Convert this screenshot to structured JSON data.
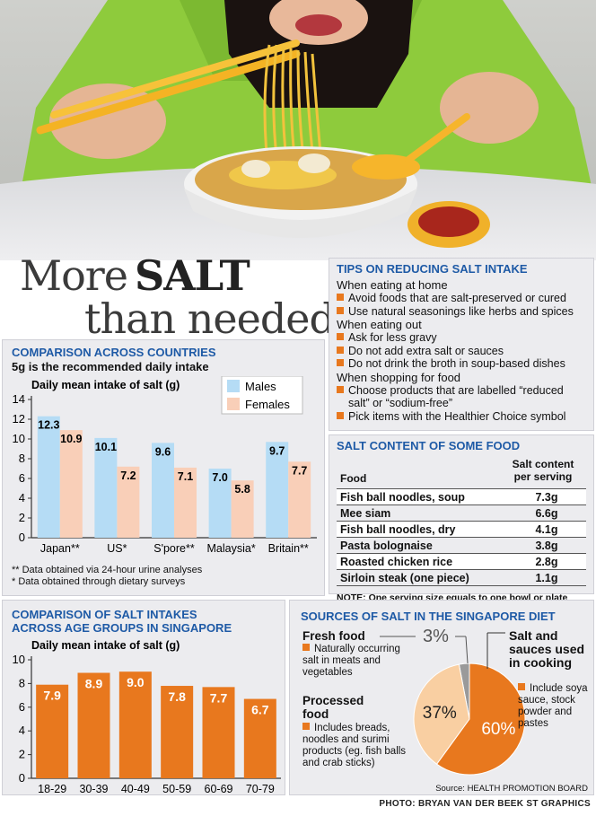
{
  "title": {
    "line1_a": "More",
    "line1_b": "SALT",
    "line2": "than needed"
  },
  "tips": {
    "title": "TIPS ON REDUCING SALT INTAKE",
    "groups": [
      {
        "heading": "When eating at home",
        "items": [
          "Avoid foods that are salt-preserved or cured",
          "Use natural seasonings like herbs and spices"
        ]
      },
      {
        "heading": "When eating out",
        "items": [
          "Ask for less gravy",
          "Do not add extra salt or sauces",
          "Do not drink the broth in soup-based dishes"
        ]
      },
      {
        "heading": "When shopping for food",
        "items": [
          "Choose products that are labelled “reduced salt” or “sodium-free”",
          "Pick items with the Healthier Choice symbol"
        ]
      }
    ]
  },
  "content": {
    "title": "SALT CONTENT OF SOME FOOD",
    "col_food": "Food",
    "col_salt": "Salt content per serving",
    "rows": [
      {
        "food": "Fish ball noodles, soup",
        "salt": "7.3g"
      },
      {
        "food": "Mee siam",
        "salt": "6.6g"
      },
      {
        "food": "Fish ball noodles, dry",
        "salt": "4.1g"
      },
      {
        "food": "Pasta bolognaise",
        "salt": "3.8g"
      },
      {
        "food": "Roasted chicken rice",
        "salt": "2.8g"
      },
      {
        "food": "Sirloin steak (one piece)",
        "salt": "1.1g"
      }
    ],
    "note": "NOTE: One serving size equals to one bowl or plate"
  },
  "countries": {
    "title": "COMPARISON ACROSS COUNTRIES",
    "subtitle": "5g is the recommended daily intake",
    "footnote1": "** Data obtained via 24-hour urine analyses",
    "footnote2": "* Data obtained through dietary surveys"
  },
  "ages": {
    "title_line1": "COMPARISON OF SALT INTAKES",
    "title_line2": "ACROSS AGE GROUPS IN SINGAPORE"
  },
  "sources": {
    "title": "SOURCES OF SALT IN THE SINGAPORE DIET",
    "fresh_label": "Fresh food",
    "fresh_desc": "Naturally occurring salt in meats and vegetables",
    "processed_label": "Processed food",
    "processed_desc": "Includes breads, noodles and surimi products (eg. fish balls and crab sticks)",
    "sauce_label": "Salt and sauces used in cooking",
    "sauce_desc": "Include soya sauce, stock powder and pastes",
    "source": "Source: HEALTH PROMOTION BOARD"
  },
  "credit": "PHOTO: BRYAN VAN DER BEEK   ST GRAPHICS",
  "colors": {
    "accent_blue": "#1e5aa6",
    "orange": "#e8781e",
    "male": "#b5dcf5",
    "female": "#f9cfb8",
    "panel": "#ececef"
  },
  "chart_data": [
    {
      "type": "bar",
      "ylabel": "Daily mean intake of salt (g)",
      "categories": [
        "Japan**",
        "US*",
        "S'pore**",
        "Malaysia*",
        "Britain**"
      ],
      "series": [
        {
          "name": "Males",
          "values": [
            12.3,
            10.1,
            9.6,
            7.0,
            9.7
          ]
        },
        {
          "name": "Females",
          "values": [
            10.9,
            7.2,
            7.1,
            5.8,
            7.7
          ]
        }
      ],
      "ylim": [
        0,
        14
      ],
      "yticks": [
        0,
        2,
        4,
        6,
        8,
        10,
        12,
        14
      ],
      "legend": "top-right",
      "grid": false
    },
    {
      "type": "bar",
      "ylabel": "Daily mean intake of salt (g)",
      "categories": [
        "18-29",
        "30-39",
        "40-49",
        "50-59",
        "60-69",
        "70-79"
      ],
      "values": [
        7.9,
        8.9,
        9.0,
        7.8,
        7.7,
        6.7
      ],
      "ylim": [
        0,
        10
      ],
      "yticks": [
        0,
        2,
        4,
        6,
        8,
        10
      ],
      "grid": false
    },
    {
      "type": "pie",
      "categories": [
        "Fresh food",
        "Processed food",
        "Salt and sauces used in cooking"
      ],
      "values": [
        3,
        37,
        60
      ],
      "labels": [
        "3%",
        "37%",
        "60%"
      ]
    }
  ]
}
